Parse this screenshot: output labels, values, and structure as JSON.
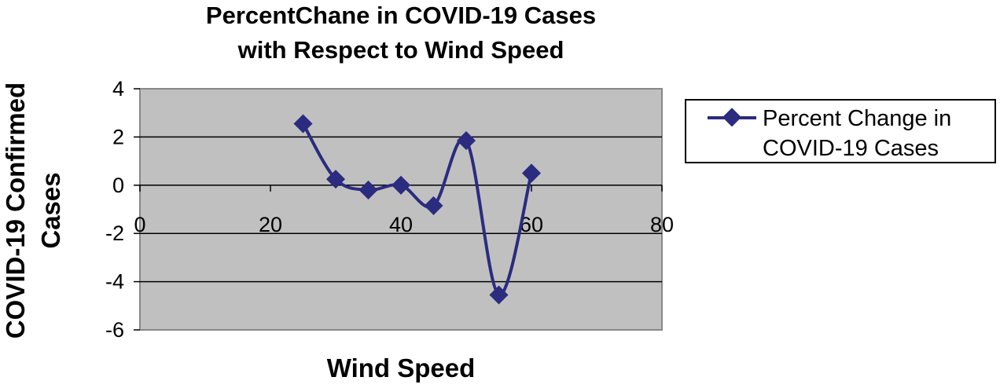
{
  "chart_data": {
    "type": "line",
    "title_line1": "PercentChane in COVID-19 Cases",
    "title_line2": "with Respect to Wind Speed",
    "xlabel": "Wind Speed",
    "ylabel_line1": "COVID-19 Confirmed",
    "ylabel_line2": "Cases",
    "xlim": [
      0,
      80
    ],
    "ylim": [
      -6,
      4
    ],
    "x_ticks": [
      0,
      20,
      40,
      60,
      80
    ],
    "y_ticks": [
      4,
      2,
      0,
      -2,
      -4,
      -6
    ],
    "grid": "horizontal",
    "smooth": true,
    "legend_position": "right",
    "plot_background": "#c0c0c0",
    "series": [
      {
        "name": "Percent Change in COVID-19 Cases",
        "legend_line1": "Percent Change in",
        "legend_line2": "COVID-19 Cases",
        "color": "#2b2b7f",
        "marker": "diamond",
        "x": [
          25,
          30,
          35,
          40,
          45,
          50,
          55,
          60
        ],
        "y": [
          2.55,
          0.25,
          -0.2,
          0.0,
          -0.85,
          1.85,
          -4.55,
          0.5
        ]
      }
    ]
  }
}
